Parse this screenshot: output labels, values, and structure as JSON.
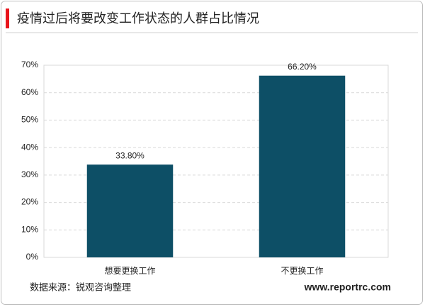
{
  "chart_data": {
    "type": "bar",
    "title": "疫情过后将要改变工作状态的人群占比情况",
    "categories": [
      "想要更换工作",
      "不更换工作"
    ],
    "values": [
      33.8,
      66.2
    ],
    "value_labels": [
      "33.80%",
      "66.20%"
    ],
    "color": "#0d4f66",
    "ylim": [
      0,
      70
    ],
    "yticks": [
      {
        "value": 0,
        "label": "0%"
      },
      {
        "value": 10,
        "label": "10%"
      },
      {
        "value": 20,
        "label": "20%"
      },
      {
        "value": 30,
        "label": "30%"
      },
      {
        "value": 40,
        "label": "40%"
      },
      {
        "value": 50,
        "label": "50%"
      },
      {
        "value": 60,
        "label": "60%"
      },
      {
        "value": 70,
        "label": "70%"
      }
    ],
    "grid": true,
    "source": "数据来源：锐观咨询整理",
    "website": "www.reportrc.com"
  }
}
